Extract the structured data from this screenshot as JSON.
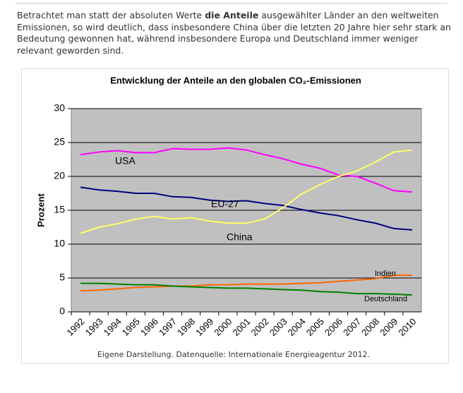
{
  "text": {
    "before": "Betrachtet man statt der absoluten Werte ",
    "bold": "die Anteile",
    "after": " ausgewählter Länder an den weltweiten Emissionen, so wird deutlich, dass insbesondere China über die letzten 20 Jahre hier sehr stark an Bedeutung gewonnen hat, während insbesondere Europa und Deutschland immer weniger relevant geworden sind."
  },
  "chart_data": {
    "type": "line",
    "title": "Entwicklung der Anteile an den globalen CO₂-Emissionen",
    "y_label": "Prozent",
    "categories": [
      "1992",
      "1993",
      "1994",
      "1995",
      "1996",
      "1997",
      "1998",
      "1999",
      "2000",
      "2001",
      "2002",
      "2003",
      "2004",
      "2005",
      "2006",
      "2007",
      "2008",
      "2009",
      "2010"
    ],
    "series": [
      {
        "name": "USA",
        "color": "#ff00ff",
        "values": [
          23.2,
          23.6,
          23.8,
          23.5,
          23.5,
          24.1,
          24.0,
          24.0,
          24.2,
          23.9,
          23.2,
          22.6,
          21.8,
          21.2,
          20.2,
          20.0,
          19.0,
          17.9,
          17.7
        ]
      },
      {
        "name": "EU-27",
        "color": "#000080",
        "values": [
          18.4,
          18.0,
          17.8,
          17.5,
          17.5,
          17.0,
          16.9,
          16.5,
          16.3,
          16.4,
          16.0,
          15.7,
          15.1,
          14.6,
          14.2,
          13.6,
          13.1,
          12.3,
          12.1
        ]
      },
      {
        "name": "China",
        "color": "#ffff66",
        "values": [
          11.6,
          12.5,
          13.0,
          13.7,
          14.1,
          13.7,
          13.9,
          13.4,
          13.1,
          13.1,
          13.7,
          15.4,
          17.4,
          18.8,
          20.0,
          20.8,
          22.1,
          23.6,
          23.9
        ]
      },
      {
        "name": "Indien",
        "color": "#ff6600",
        "values": [
          3.1,
          3.2,
          3.4,
          3.6,
          3.7,
          3.8,
          3.8,
          4.0,
          4.0,
          4.1,
          4.1,
          4.1,
          4.2,
          4.3,
          4.5,
          4.7,
          4.9,
          5.4,
          5.4
        ]
      },
      {
        "name": "Deutschland",
        "color": "#008000",
        "values": [
          4.2,
          4.2,
          4.1,
          4.0,
          4.0,
          3.8,
          3.7,
          3.6,
          3.5,
          3.5,
          3.4,
          3.3,
          3.2,
          3.0,
          2.9,
          2.7,
          2.7,
          2.6,
          2.5
        ]
      }
    ],
    "ylim": [
      0,
      30
    ],
    "yticks": [
      0,
      5,
      10,
      15,
      20,
      25,
      30
    ],
    "grid": true
  },
  "caption": "Eigene Darstellung. Datenquelle: Internationale Energieagentur 2012."
}
